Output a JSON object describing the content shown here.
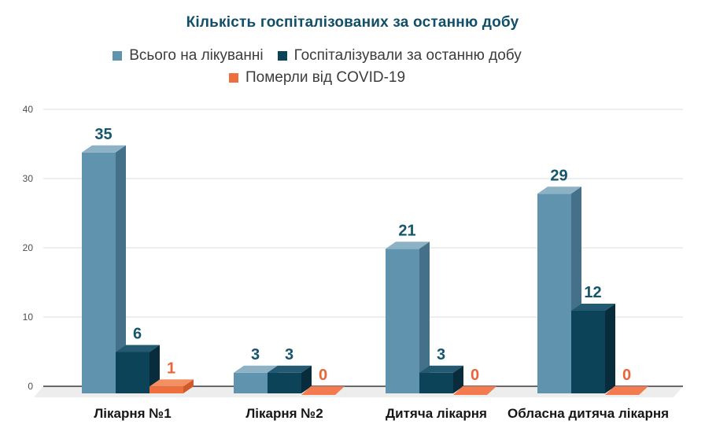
{
  "chart_data": {
    "type": "bar",
    "style": "3d-column",
    "title": "Кількість госпіталізованих за останню добу",
    "categories": [
      "Лікарня №1",
      "Лікарня №2",
      "Дитяча лікарня",
      "Обласна дитяча лікарня"
    ],
    "series": [
      {
        "name": "Всього на лікуванні",
        "values": [
          35,
          3,
          21,
          29
        ],
        "colors": {
          "front": "#5f93ae",
          "top": "#8db2c5",
          "side": "#44708a"
        },
        "label_color": "#15566c"
      },
      {
        "name": "Госпіталізували за останню добу",
        "values": [
          6,
          3,
          3,
          12
        ],
        "colors": {
          "front": "#0d4358",
          "top": "#235a72",
          "side": "#092c3d"
        },
        "label_color": "#15566c"
      },
      {
        "name": "Померли від COVID-19",
        "values": [
          1,
          0,
          0,
          0
        ],
        "colors": {
          "front": "#ee6e3e",
          "top": "#f48f61",
          "side": "#d05a2b",
          "zero_tile": "#f37b4f"
        },
        "label_color": "#e96438"
      }
    ],
    "ylim": [
      0,
      40
    ],
    "yticks": [
      0,
      10,
      20,
      30,
      40
    ],
    "grid": true,
    "legend_position": "top",
    "data_labels": true
  },
  "legend": {
    "rows": [
      [
        0,
        1
      ],
      [
        2
      ]
    ],
    "items": [
      {
        "label": "Всього на лікуванні",
        "color": "#5f93ae"
      },
      {
        "label": "Госпіталізували за останню добу",
        "color": "#0d4358"
      },
      {
        "label": "Померли від COVID-19",
        "color": "#ee6e3e"
      }
    ]
  },
  "axis": {
    "grid_color": "#dcdcdc",
    "axis_color": "#3a3a3a",
    "floor_color": "#ededed",
    "tick_color": "#4d4d4d"
  },
  "title_color": "#114f68"
}
